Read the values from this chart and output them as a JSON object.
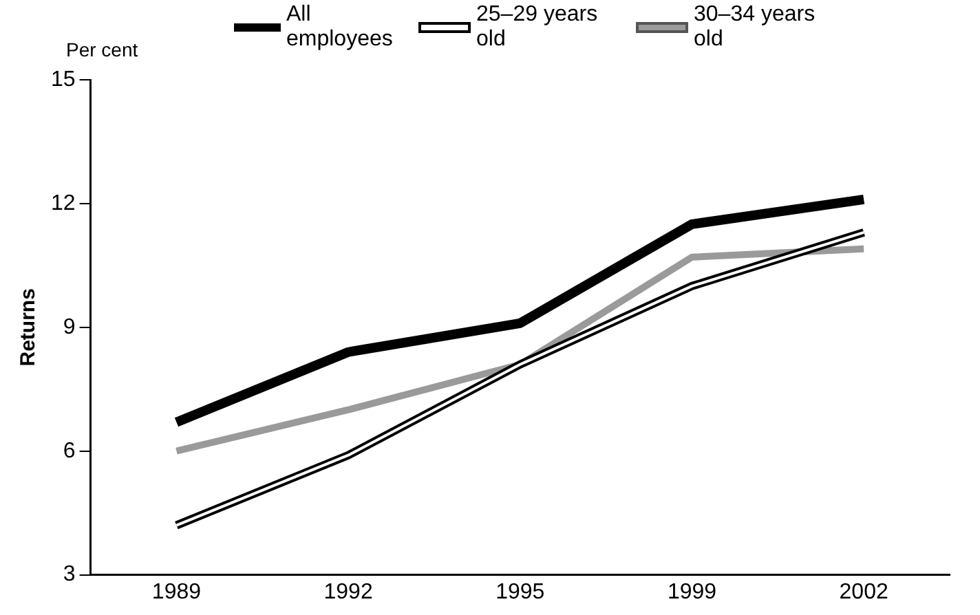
{
  "chart_data": {
    "type": "line",
    "ylabel": "Returns",
    "annotations": [
      "Per cent"
    ],
    "categories": [
      "1989",
      "1992",
      "1995",
      "1999",
      "2002"
    ],
    "series": [
      {
        "name": "All employees",
        "color": "#000000",
        "values": [
          6.7,
          8.4,
          9.1,
          11.5,
          12.1
        ]
      },
      {
        "name": "25–29 years old",
        "color": "#000000",
        "values": [
          4.2,
          5.9,
          8.1,
          10.0,
          11.3
        ]
      },
      {
        "name": "30–34 years old",
        "color": "#9a9a9a",
        "values": [
          6.0,
          7.0,
          8.1,
          10.7,
          10.9
        ]
      }
    ],
    "ylim": [
      3,
      15
    ],
    "yticks": [
      3,
      6,
      9,
      12,
      15
    ],
    "grid": false,
    "legend": "top",
    "marker": "none",
    "line_style": "solid"
  }
}
